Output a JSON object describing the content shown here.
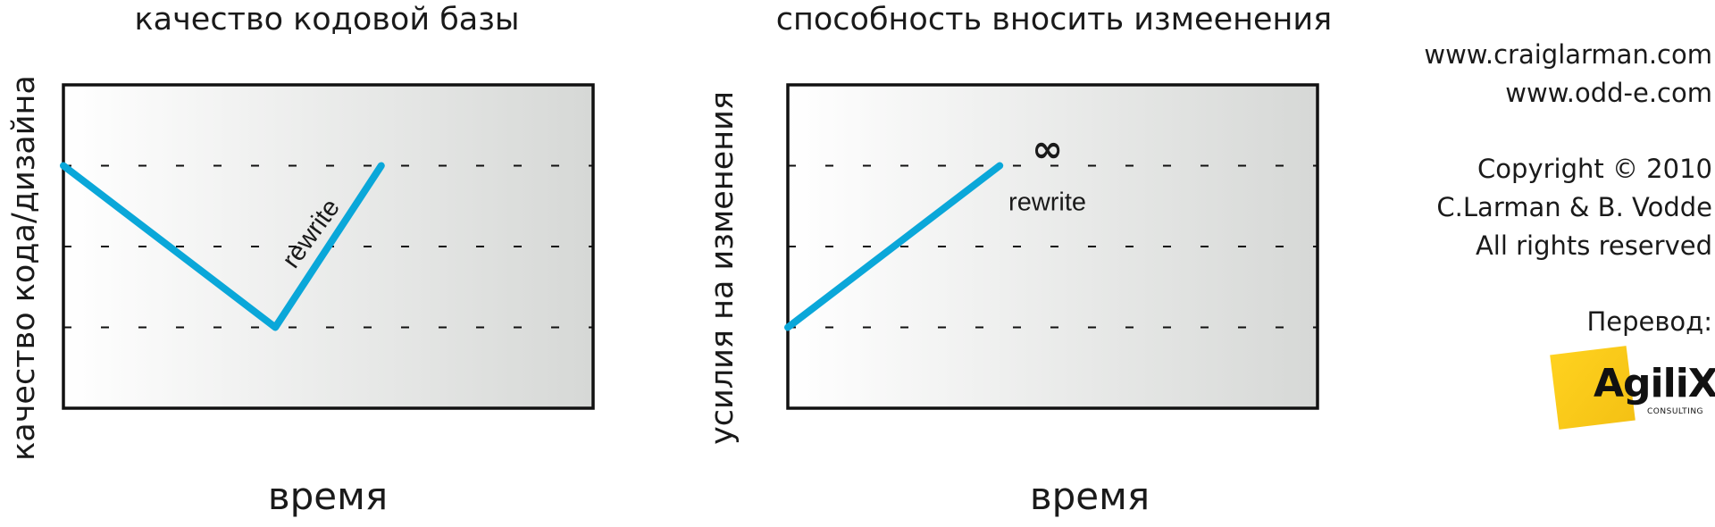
{
  "chart_data": [
    {
      "type": "line",
      "title": "качество кодовой базы",
      "xlabel": "время",
      "ylabel": "качество кода/дизайна",
      "grid": true,
      "gridlines_y": [
        1,
        2,
        3
      ],
      "xlim": [
        0,
        10
      ],
      "ylim": [
        0,
        4
      ],
      "series": [
        {
          "x": [
            0,
            4,
            6
          ],
          "y": [
            3,
            1,
            3
          ]
        }
      ],
      "annotations": [
        {
          "text": "rewrite",
          "x": 4.8,
          "y": 2.1
        }
      ],
      "colors": {
        "line": "#0aa7d9",
        "bg_start": "#ffffff",
        "bg_end": "#d6d8d6"
      }
    },
    {
      "type": "line",
      "title": "способность вносить измеенения",
      "xlabel": "время",
      "ylabel": "усилия на изменения",
      "grid": true,
      "gridlines_y": [
        1,
        2,
        3
      ],
      "xlim": [
        0,
        10
      ],
      "ylim": [
        0,
        4
      ],
      "series": [
        {
          "x": [
            0,
            4
          ],
          "y": [
            1,
            3
          ]
        }
      ],
      "annotations": [
        {
          "text": "∞",
          "x": 4.9,
          "y": 3.05
        },
        {
          "text": "rewrite",
          "x": 4.9,
          "y": 2.45
        }
      ],
      "colors": {
        "line": "#0aa7d9",
        "bg_start": "#ffffff",
        "bg_end": "#d6d8d6"
      }
    }
  ],
  "credits": {
    "site1": "www.craiglarman.com",
    "site2": "www.odd-e.com",
    "copyright": "Copyright © 2010",
    "authors": "C.Larman & B. Vodde",
    "rights": "All rights reserved",
    "translation": "Перевод:"
  },
  "logo": {
    "name": "AgiliX",
    "subtitle": "CONSULTING",
    "icon": "agilix-logo-icon",
    "color": "#ffd21f"
  }
}
